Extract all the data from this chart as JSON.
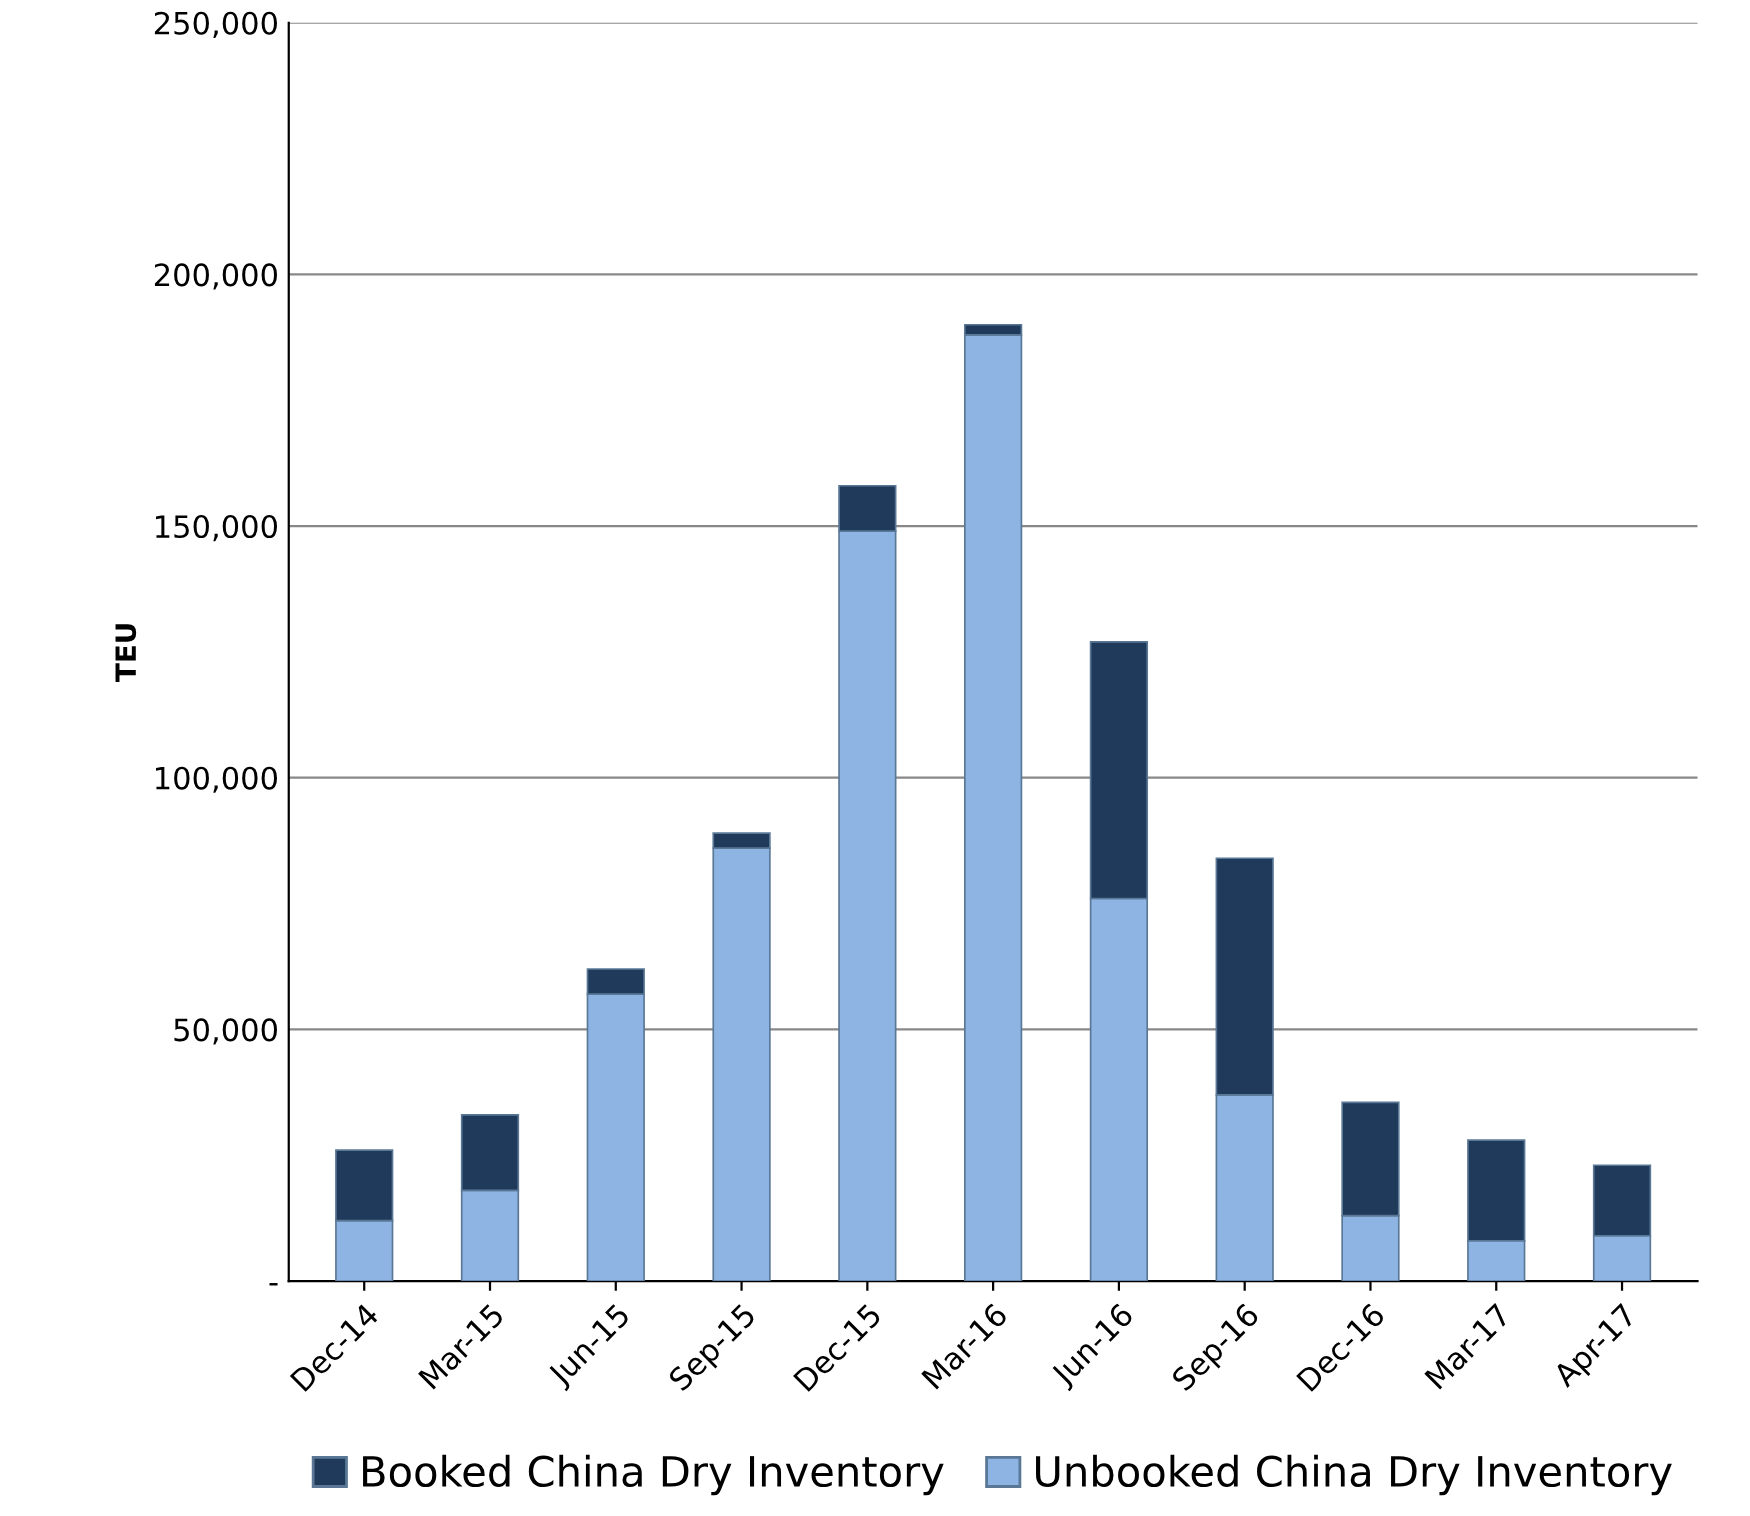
{
  "chart_data": {
    "type": "bar",
    "stacked": true,
    "ylabel": "TEU",
    "categories": [
      "Dec-14",
      "Mar-15",
      "Jun-15",
      "Sep-15",
      "Dec-15",
      "Mar-16",
      "Jun-16",
      "Sep-16",
      "Dec-16",
      "Mar-17",
      "Apr-17"
    ],
    "series": [
      {
        "name": "Unbooked China Dry Inventory",
        "color": "#8eb4e3",
        "values": [
          12000,
          18000,
          57000,
          86000,
          149000,
          188000,
          76000,
          37000,
          13000,
          8000,
          9000
        ]
      },
      {
        "name": "Booked China Dry Inventory",
        "color": "#1f3a5a",
        "values": [
          14000,
          15000,
          5000,
          3000,
          9000,
          2000,
          51000,
          47000,
          22500,
          20000,
          14000
        ]
      }
    ],
    "ylim": [
      0,
      250000
    ],
    "yticks": [
      {
        "value": 0,
        "label": "-"
      },
      {
        "value": 50000,
        "label": "50,000"
      },
      {
        "value": 100000,
        "label": "100,000"
      },
      {
        "value": 150000,
        "label": "150,000"
      },
      {
        "value": 200000,
        "label": "200,000"
      },
      {
        "value": 250000,
        "label": "250,000"
      }
    ],
    "grid": "y",
    "legend": "bottom"
  }
}
